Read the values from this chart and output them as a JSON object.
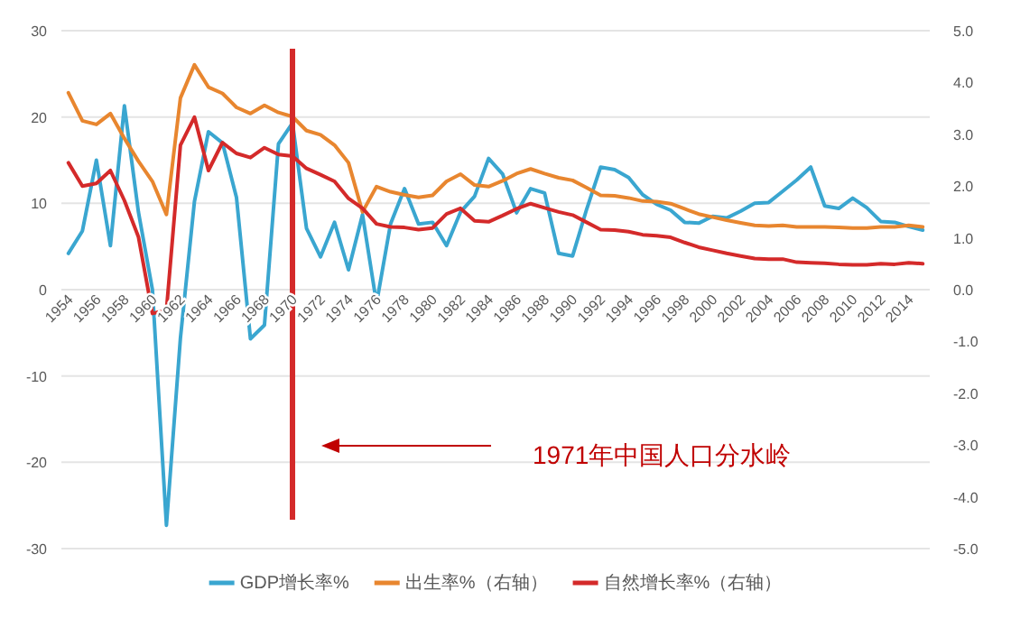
{
  "chart_data": {
    "type": "line",
    "categories": [
      "1954",
      null,
      "1956",
      null,
      "1958",
      null,
      "1960",
      null,
      "1962",
      null,
      "1964",
      null,
      "1966",
      null,
      "1968",
      null,
      "1970",
      null,
      "1972",
      null,
      "1974",
      null,
      "1976",
      null,
      "1978",
      null,
      "1980",
      null,
      "1982",
      null,
      "1984",
      null,
      "1986",
      null,
      "1988",
      null,
      "1990",
      null,
      "1992",
      null,
      "1994",
      null,
      "1996",
      null,
      "1998",
      null,
      "2000",
      null,
      "2002",
      null,
      "2004",
      null,
      "2006",
      null,
      "2008",
      null,
      "2010",
      null,
      "2012",
      null,
      "2014",
      null
    ],
    "series": [
      {
        "name": "GDP增长率%",
        "color": "#3aa6d0",
        "values": [
          4.2,
          6.8,
          15,
          5.1,
          21.3,
          9,
          0,
          -27.3,
          -5.6,
          10.2,
          18.3,
          17,
          10.7,
          -5.7,
          -4.1,
          16.9,
          19.3,
          7.1,
          3.8,
          7.8,
          2.3,
          8.7,
          -1.6,
          7.6,
          11.7,
          7.6,
          7.8,
          5.1,
          9,
          10.8,
          15.2,
          13.4,
          8.9,
          11.7,
          11.2,
          4.2,
          3.9,
          9.3,
          14.2,
          13.9,
          13,
          11,
          9.9,
          9.2,
          7.8,
          7.7,
          8.5,
          8.3,
          9.1,
          10,
          10.1,
          11.4,
          12.7,
          14.2,
          9.7,
          9.4,
          10.6,
          9.5,
          7.9,
          7.8,
          7.3,
          6.9
        ]
      },
      {
        "name": "出生率%（右轴）",
        "color": "#e8862f",
        "axis": "y2",
        "values": [
          3.8,
          3.26,
          3.19,
          3.4,
          2.92,
          2.48,
          2.09,
          1.45,
          3.7,
          4.34,
          3.91,
          3.79,
          3.52,
          3.4,
          3.56,
          3.42,
          3.34,
          3.07,
          2.99,
          2.79,
          2.45,
          1.5,
          1.99,
          1.89,
          1.83,
          1.78,
          1.82,
          2.09,
          2.23,
          2.02,
          1.99,
          2.1,
          2.24,
          2.33,
          2.24,
          2.16,
          2.11,
          1.97,
          1.82,
          1.81,
          1.77,
          1.71,
          1.7,
          1.66,
          1.56,
          1.46,
          1.4,
          1.34,
          1.29,
          1.24,
          1.23,
          1.24,
          1.21,
          1.21,
          1.21,
          1.2,
          1.19,
          1.19,
          1.21,
          1.21,
          1.24,
          1.21
        ]
      },
      {
        "name": "自然增长率%（右轴）",
        "color": "#d42a2a",
        "axis": "y2",
        "values": [
          2.45,
          2.0,
          2.05,
          2.3,
          1.72,
          1.02,
          -0.46,
          -0.4,
          2.79,
          3.33,
          2.3,
          2.84,
          2.63,
          2.55,
          2.74,
          2.61,
          2.58,
          2.34,
          2.22,
          2.09,
          1.76,
          1.57,
          1.27,
          1.21,
          1.2,
          1.16,
          1.19,
          1.46,
          1.57,
          1.33,
          1.31,
          1.43,
          1.56,
          1.66,
          1.58,
          1.5,
          1.44,
          1.3,
          1.16,
          1.15,
          1.12,
          1.06,
          1.04,
          1.01,
          0.91,
          0.82,
          0.76,
          0.7,
          0.65,
          0.6,
          0.59,
          0.59,
          0.53,
          0.52,
          0.51,
          0.49,
          0.48,
          0.48,
          0.5,
          0.49,
          0.52,
          0.5
        ]
      }
    ],
    "ylim": [
      -30,
      30
    ],
    "yticks": [
      -30,
      -20,
      -10,
      0,
      10,
      20,
      30
    ],
    "y2lim": [
      -5,
      5
    ],
    "y2ticks": [
      {
        "value": -5,
        "label": "-5.0"
      },
      {
        "value": -4,
        "label": "-4.0"
      },
      {
        "value": -3,
        "label": "-3.0"
      },
      {
        "value": -2,
        "label": "-2.0"
      },
      {
        "value": -1,
        "label": "-1.0"
      },
      {
        "value": 0,
        "label": "0.0"
      },
      {
        "value": 1,
        "label": "1.0"
      },
      {
        "value": 2,
        "label": "2.0"
      },
      {
        "value": 3,
        "label": "3.0"
      },
      {
        "value": 4,
        "label": "4.0"
      },
      {
        "value": 5,
        "label": "5.0"
      }
    ],
    "grid": "y",
    "legend": "bottom",
    "ref_lines": [
      {
        "axis": "x",
        "value": "1970",
        "color": "#d42a2a"
      }
    ],
    "annotations": [
      "1971年中国人口分水岭"
    ]
  }
}
